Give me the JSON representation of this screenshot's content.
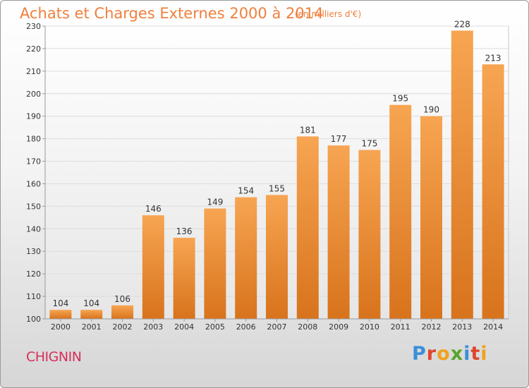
{
  "header": {
    "title": "Achats et Charges Externes 2000 à 2014",
    "subtitle": "(en milliers d'€)"
  },
  "footer": {
    "place": "CHIGNIN",
    "logo": "Proxiti"
  },
  "colors": {
    "bar_top": "#f7a552",
    "bar_bottom": "#d8731c",
    "title": "#f07f3c",
    "place": "#d6305a"
  },
  "chart_data": {
    "type": "bar",
    "title": "Achats et Charges Externes 2000 à 2014",
    "xlabel": "",
    "ylabel": "",
    "categories": [
      "2000",
      "2001",
      "2002",
      "2003",
      "2004",
      "2005",
      "2006",
      "2007",
      "2008",
      "2009",
      "2010",
      "2011",
      "2012",
      "2013",
      "2014"
    ],
    "values": [
      104,
      104,
      106,
      146,
      136,
      149,
      154,
      155,
      181,
      177,
      175,
      195,
      190,
      228,
      213
    ],
    "ylim": [
      100,
      230
    ],
    "yticks": [
      100,
      110,
      120,
      130,
      140,
      150,
      160,
      170,
      180,
      190,
      200,
      210,
      220,
      230
    ],
    "grid": true,
    "data_labels": true
  }
}
